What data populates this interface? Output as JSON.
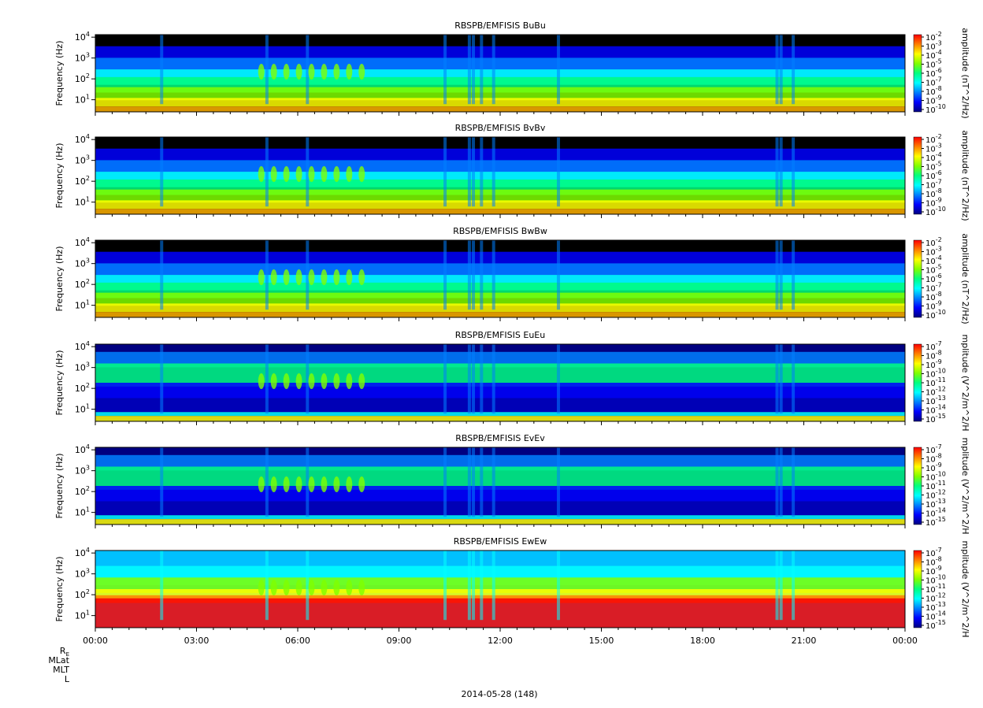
{
  "figure": {
    "date_label": "2014-05-28 (148)",
    "x_axis": {
      "ticks": [
        "00:00",
        "03:00",
        "06:00",
        "09:00",
        "12:00",
        "15:00",
        "18:00",
        "21:00",
        "00:00"
      ]
    },
    "ephemeris_labels": [
      "R_E",
      "MLat",
      "MLT",
      "L"
    ]
  },
  "colors": {
    "palette": [
      "#000080",
      "#0000ff",
      "#0080ff",
      "#00ffff",
      "#00ff80",
      "#80ff00",
      "#ffff00",
      "#ff8000",
      "#ff0000"
    ],
    "background": "#000000"
  },
  "chart_data": [
    {
      "type": "heatmap",
      "title": "RBSPB/EMFISIS  BuBu",
      "ylabel": "Frequency (Hz)",
      "y_scale": "log",
      "y_ticks": [
        "10^1",
        "10^2",
        "10^3",
        "10^4"
      ],
      "colorbar": {
        "label": "amplitude (nT^2/Hz)",
        "scale": "log",
        "ticks": [
          "10^-2",
          "10^-3",
          "10^-4",
          "10^-5",
          "10^-6",
          "10^-7",
          "10^-8",
          "10^-9",
          "10^-10"
        ]
      }
    },
    {
      "type": "heatmap",
      "title": "RBSPB/EMFISIS  BvBv",
      "ylabel": "Frequency (Hz)",
      "y_scale": "log",
      "y_ticks": [
        "10^1",
        "10^2",
        "10^3",
        "10^4"
      ],
      "colorbar": {
        "label": "amplitude (nT^2/Hz)",
        "scale": "log",
        "ticks": [
          "10^-2",
          "10^-3",
          "10^-4",
          "10^-5",
          "10^-6",
          "10^-7",
          "10^-8",
          "10^-9",
          "10^-10"
        ]
      }
    },
    {
      "type": "heatmap",
      "title": "RBSPB/EMFISIS  BwBw",
      "ylabel": "Frequency (Hz)",
      "y_scale": "log",
      "y_ticks": [
        "10^1",
        "10^2",
        "10^3",
        "10^4"
      ],
      "colorbar": {
        "label": "amplitude (nT^2/Hz)",
        "scale": "log",
        "ticks": [
          "10^-2",
          "10^-3",
          "10^-4",
          "10^-5",
          "10^-6",
          "10^-7",
          "10^-8",
          "10^-9",
          "10^-10"
        ]
      }
    },
    {
      "type": "heatmap",
      "title": "RBSPB/EMFISIS  EuEu",
      "ylabel": "Frequency (Hz)",
      "y_scale": "log",
      "y_ticks": [
        "10^1",
        "10^2",
        "10^3",
        "10^4"
      ],
      "colorbar": {
        "label": "mplitude (V^2/m^2/H",
        "scale": "log",
        "ticks": [
          "10^-7",
          "10^-8",
          "10^-9",
          "10^-10",
          "10^-11",
          "10^-12",
          "10^-13",
          "10^-14",
          "10^-15"
        ]
      }
    },
    {
      "type": "heatmap",
      "title": "RBSPB/EMFISIS  EvEv",
      "ylabel": "Frequency (Hz)",
      "y_scale": "log",
      "y_ticks": [
        "10^1",
        "10^2",
        "10^3",
        "10^4"
      ],
      "colorbar": {
        "label": "mplitude (V^2/m^2/H",
        "scale": "log",
        "ticks": [
          "10^-7",
          "10^-8",
          "10^-9",
          "10^-10",
          "10^-11",
          "10^-12",
          "10^-13",
          "10^-14",
          "10^-15"
        ]
      }
    },
    {
      "type": "heatmap",
      "title": "RBSPB/EMFISIS  EwEw",
      "ylabel": "Frequency (Hz)",
      "y_scale": "log",
      "y_ticks": [
        "10^1",
        "10^2",
        "10^3",
        "10^4"
      ],
      "colorbar": {
        "label": "mplitude (V^2/m^2/H",
        "scale": "log",
        "ticks": [
          "10^-7",
          "10^-8",
          "10^-9",
          "10^-10",
          "10^-11",
          "10^-12",
          "10^-13",
          "10^-14",
          "10^-15"
        ]
      }
    }
  ]
}
